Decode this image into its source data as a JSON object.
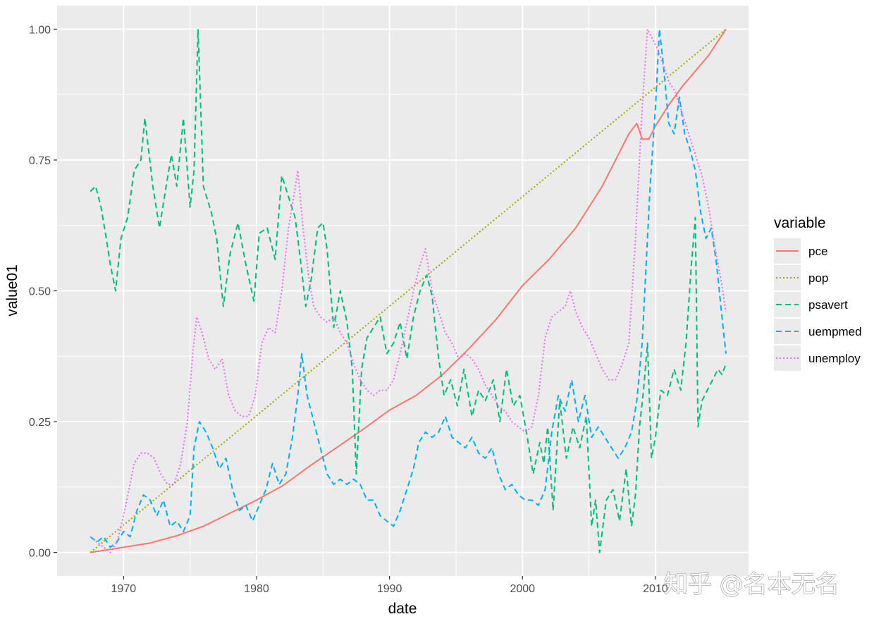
{
  "chart_data": {
    "type": "line",
    "xlabel": "date",
    "ylabel": "value01",
    "xlim": [
      1965.0,
      2017.0
    ],
    "ylim": [
      -0.045,
      1.045
    ],
    "x_ticks": [
      1970,
      1980,
      1990,
      2000,
      2010
    ],
    "x_tick_labels": [
      "1970",
      "1980",
      "1990",
      "2000",
      "2010"
    ],
    "y_ticks": [
      0,
      0.25,
      0.5,
      0.75,
      1.0
    ],
    "y_tick_labels": [
      "0.00",
      "0.25",
      "0.50",
      "0.75",
      "1.00"
    ],
    "grid": true,
    "legend": {
      "title": "variable",
      "position": "right"
    },
    "series": [
      {
        "name": "pce",
        "color": "#F8766D",
        "linetype": "solid",
        "x": [
          1967.5,
          1970,
          1972,
          1974,
          1976,
          1978,
          1980,
          1982,
          1984,
          1986,
          1988,
          1990,
          1992,
          1994,
          1996,
          1998,
          2000,
          2002,
          2004,
          2006,
          2008,
          2008.6,
          2009.0,
          2009.5,
          2010,
          2011,
          2012,
          2013,
          2014,
          2015.3
        ],
        "y": [
          0.0,
          0.01,
          0.018,
          0.032,
          0.05,
          0.075,
          0.1,
          0.128,
          0.165,
          0.2,
          0.235,
          0.272,
          0.3,
          0.34,
          0.39,
          0.445,
          0.51,
          0.56,
          0.62,
          0.7,
          0.8,
          0.82,
          0.79,
          0.79,
          0.815,
          0.855,
          0.89,
          0.92,
          0.95,
          1.0
        ]
      },
      {
        "name": "pop",
        "color": "#A3A500",
        "linetype": "dotted",
        "x": [
          1967.5,
          2015.3
        ],
        "y": [
          0.0,
          1.0
        ]
      },
      {
        "name": "psavert",
        "color": "#00BF7D",
        "linetype": "dashed",
        "x": [
          1967.5,
          1967.9,
          1968.3,
          1968.7,
          1969.0,
          1969.4,
          1969.8,
          1970.3,
          1970.8,
          1971.3,
          1971.6,
          1972.2,
          1972.7,
          1973.2,
          1973.6,
          1974.0,
          1974.5,
          1975.0,
          1975.3,
          1975.6,
          1976.0,
          1976.6,
          1977.0,
          1977.5,
          1978.0,
          1978.6,
          1979.2,
          1979.8,
          1980.2,
          1980.8,
          1981.4,
          1981.9,
          1982.4,
          1982.9,
          1983.3,
          1983.7,
          1984.1,
          1984.6,
          1985.0,
          1985.3,
          1985.8,
          1986.3,
          1986.8,
          1987.2,
          1987.5,
          1987.9,
          1988.3,
          1988.8,
          1989.3,
          1989.8,
          1990.3,
          1990.8,
          1991.3,
          1991.8,
          1992.3,
          1992.8,
          1993.2,
          1993.7,
          1994.1,
          1994.6,
          1995.1,
          1995.6,
          1996.2,
          1996.7,
          1997.2,
          1997.8,
          1998.3,
          1998.8,
          1999.3,
          1999.8,
          2000.3,
          2000.8,
          2001.3,
          2001.6,
          2001.9,
          2002.3,
          2002.8,
          2003.3,
          2003.8,
          2004.3,
          2004.8,
          2005.2,
          2005.5,
          2005.8,
          2006.3,
          2006.8,
          2007.3,
          2007.8,
          2008.2,
          2008.5,
          2008.8,
          2009.1,
          2009.4,
          2009.7,
          2010.0,
          2010.4,
          2010.9,
          2011.4,
          2011.9,
          2012.3,
          2012.7,
          2013.0,
          2013.2,
          2013.5,
          2013.9,
          2014.3,
          2014.7,
          2015.0,
          2015.3
        ],
        "y": [
          0.69,
          0.7,
          0.66,
          0.6,
          0.55,
          0.5,
          0.6,
          0.64,
          0.73,
          0.75,
          0.83,
          0.7,
          0.62,
          0.7,
          0.76,
          0.7,
          0.83,
          0.66,
          0.73,
          1.0,
          0.7,
          0.65,
          0.6,
          0.47,
          0.57,
          0.63,
          0.55,
          0.48,
          0.61,
          0.62,
          0.56,
          0.72,
          0.68,
          0.64,
          0.56,
          0.47,
          0.52,
          0.62,
          0.63,
          0.58,
          0.43,
          0.5,
          0.44,
          0.35,
          0.15,
          0.35,
          0.41,
          0.43,
          0.45,
          0.38,
          0.4,
          0.44,
          0.37,
          0.45,
          0.5,
          0.53,
          0.49,
          0.37,
          0.3,
          0.33,
          0.28,
          0.35,
          0.26,
          0.31,
          0.29,
          0.33,
          0.25,
          0.35,
          0.28,
          0.3,
          0.23,
          0.15,
          0.21,
          0.17,
          0.24,
          0.08,
          0.29,
          0.18,
          0.24,
          0.2,
          0.26,
          0.05,
          0.1,
          0.0,
          0.1,
          0.12,
          0.06,
          0.16,
          0.05,
          0.11,
          0.24,
          0.31,
          0.4,
          0.18,
          0.22,
          0.31,
          0.3,
          0.35,
          0.31,
          0.4,
          0.55,
          0.64,
          0.24,
          0.29,
          0.31,
          0.33,
          0.35,
          0.34,
          0.36
        ]
      },
      {
        "name": "uempmed",
        "color": "#00B0F6",
        "linetype": "dashed",
        "x": [
          1967.5,
          1968.0,
          1968.5,
          1969.0,
          1969.5,
          1970.0,
          1970.5,
          1971.0,
          1971.5,
          1972.0,
          1972.5,
          1973.0,
          1973.5,
          1974.0,
          1974.5,
          1975.0,
          1975.3,
          1975.7,
          1976.2,
          1976.7,
          1977.2,
          1977.7,
          1978.2,
          1978.7,
          1979.2,
          1979.7,
          1980.2,
          1980.7,
          1981.2,
          1981.7,
          1982.2,
          1982.7,
          1983.1,
          1983.4,
          1983.8,
          1984.3,
          1984.8,
          1985.3,
          1985.8,
          1986.3,
          1986.8,
          1987.3,
          1987.8,
          1988.3,
          1988.8,
          1989.3,
          1989.8,
          1990.3,
          1990.8,
          1991.3,
          1991.8,
          1992.2,
          1992.7,
          1993.2,
          1993.7,
          1994.2,
          1994.7,
          1995.2,
          1995.7,
          1996.2,
          1996.7,
          1997.2,
          1997.7,
          1998.2,
          1998.7,
          1999.2,
          1999.7,
          2000.2,
          2000.7,
          2001.2,
          2001.7,
          2002.2,
          2002.7,
          2003.2,
          2003.7,
          2004.2,
          2004.7,
          2005.2,
          2005.7,
          2006.2,
          2006.7,
          2007.2,
          2007.7,
          2008.2,
          2008.6,
          2009.0,
          2009.3,
          2009.6,
          2010.0,
          2010.3,
          2010.6,
          2011.0,
          2011.4,
          2011.8,
          2012.2,
          2012.6,
          2013.0,
          2013.4,
          2013.8,
          2014.2,
          2014.6,
          2015.0,
          2015.3
        ],
        "y": [
          0.03,
          0.02,
          0.03,
          0.01,
          0.02,
          0.04,
          0.03,
          0.08,
          0.11,
          0.1,
          0.07,
          0.1,
          0.05,
          0.06,
          0.04,
          0.07,
          0.2,
          0.25,
          0.23,
          0.2,
          0.16,
          0.18,
          0.12,
          0.08,
          0.09,
          0.06,
          0.09,
          0.12,
          0.17,
          0.13,
          0.15,
          0.22,
          0.3,
          0.38,
          0.3,
          0.25,
          0.2,
          0.15,
          0.13,
          0.14,
          0.13,
          0.14,
          0.13,
          0.1,
          0.1,
          0.07,
          0.06,
          0.05,
          0.08,
          0.12,
          0.16,
          0.21,
          0.23,
          0.22,
          0.23,
          0.26,
          0.22,
          0.21,
          0.2,
          0.22,
          0.19,
          0.18,
          0.2,
          0.15,
          0.12,
          0.13,
          0.11,
          0.1,
          0.1,
          0.09,
          0.12,
          0.23,
          0.3,
          0.27,
          0.33,
          0.25,
          0.3,
          0.22,
          0.24,
          0.22,
          0.2,
          0.18,
          0.2,
          0.23,
          0.29,
          0.4,
          0.55,
          0.7,
          0.85,
          1.0,
          0.93,
          0.82,
          0.8,
          0.87,
          0.8,
          0.77,
          0.73,
          0.65,
          0.6,
          0.62,
          0.55,
          0.45,
          0.38
        ]
      },
      {
        "name": "unemploy",
        "color": "#E76BF3",
        "linetype": "dotted",
        "x": [
          1967.5,
          1968.0,
          1968.5,
          1969.0,
          1969.5,
          1970.0,
          1970.4,
          1970.8,
          1971.3,
          1971.8,
          1972.3,
          1972.8,
          1973.3,
          1973.8,
          1974.3,
          1974.8,
          1975.2,
          1975.5,
          1975.9,
          1976.4,
          1976.9,
          1977.4,
          1977.9,
          1978.4,
          1978.9,
          1979.4,
          1979.9,
          1980.4,
          1980.9,
          1981.4,
          1981.9,
          1982.4,
          1982.8,
          1983.1,
          1983.5,
          1983.9,
          1984.3,
          1984.8,
          1985.3,
          1985.8,
          1986.3,
          1986.8,
          1987.3,
          1987.8,
          1988.3,
          1988.8,
          1989.3,
          1989.8,
          1990.3,
          1990.8,
          1991.3,
          1991.8,
          1992.3,
          1992.7,
          1993.2,
          1993.7,
          1994.2,
          1994.7,
          1995.2,
          1995.7,
          1996.2,
          1996.7,
          1997.2,
          1997.7,
          1998.2,
          1998.7,
          1999.2,
          1999.7,
          2000.2,
          2000.7,
          2001.2,
          2001.7,
          2002.2,
          2002.7,
          2003.2,
          2003.6,
          2004.0,
          2004.5,
          2005.0,
          2005.5,
          2006.0,
          2006.5,
          2007.0,
          2007.5,
          2008.0,
          2008.5,
          2009.0,
          2009.4,
          2009.8,
          2010.2,
          2010.6,
          2011.0,
          2011.5,
          2012.0,
          2012.5,
          2013.0,
          2013.5,
          2014.0,
          2014.5,
          2015.0,
          2015.3
        ],
        "y": [
          0.03,
          0.02,
          0.01,
          0.0,
          0.02,
          0.07,
          0.12,
          0.17,
          0.19,
          0.19,
          0.18,
          0.15,
          0.13,
          0.13,
          0.17,
          0.25,
          0.38,
          0.45,
          0.42,
          0.37,
          0.35,
          0.37,
          0.3,
          0.27,
          0.26,
          0.26,
          0.3,
          0.4,
          0.43,
          0.42,
          0.5,
          0.62,
          0.68,
          0.73,
          0.62,
          0.53,
          0.47,
          0.45,
          0.44,
          0.45,
          0.42,
          0.4,
          0.36,
          0.33,
          0.31,
          0.3,
          0.31,
          0.31,
          0.33,
          0.38,
          0.44,
          0.5,
          0.55,
          0.58,
          0.5,
          0.46,
          0.42,
          0.4,
          0.37,
          0.38,
          0.37,
          0.35,
          0.32,
          0.3,
          0.28,
          0.27,
          0.25,
          0.24,
          0.23,
          0.24,
          0.3,
          0.41,
          0.45,
          0.46,
          0.47,
          0.5,
          0.46,
          0.43,
          0.41,
          0.38,
          0.35,
          0.33,
          0.33,
          0.36,
          0.4,
          0.6,
          0.85,
          1.0,
          0.98,
          0.96,
          0.93,
          0.9,
          0.88,
          0.84,
          0.8,
          0.76,
          0.72,
          0.66,
          0.58,
          0.51,
          0.46
        ]
      }
    ]
  },
  "watermark": "知乎 @名本无名"
}
